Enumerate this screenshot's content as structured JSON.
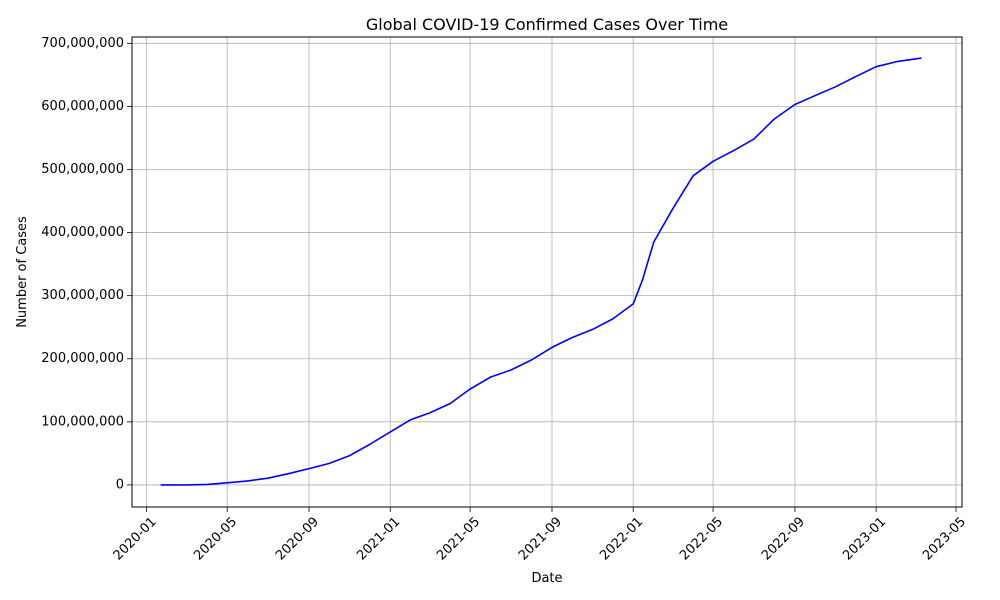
{
  "chart_data": {
    "type": "line",
    "title": "Global COVID-19 Confirmed Cases Over Time",
    "xlabel": "Date",
    "ylabel": "Number of Cases",
    "x_tick_labels": [
      "2020-01",
      "2020-05",
      "2020-09",
      "2021-01",
      "2021-05",
      "2021-09",
      "2022-01",
      "2022-05",
      "2022-09",
      "2023-01",
      "2023-05"
    ],
    "y_tick_labels": [
      "0",
      "100,000,000",
      "200,000,000",
      "300,000,000",
      "400,000,000",
      "500,000,000",
      "600,000,000",
      "700,000,000"
    ],
    "y_ticks": [
      0,
      100000000,
      200000000,
      300000000,
      400000000,
      500000000,
      600000000,
      700000000
    ],
    "ylim": [
      -35000000,
      710000000
    ],
    "xlim": [
      "2019-12-10",
      "2023-05-10"
    ],
    "grid": true,
    "line_color": "#0000ff",
    "series": [
      {
        "values": [
          {
            "x": "2020-01-22",
            "y": 0
          },
          {
            "x": "2020-03-01",
            "y": 90000
          },
          {
            "x": "2020-04-01",
            "y": 900000
          },
          {
            "x": "2020-05-01",
            "y": 3300000
          },
          {
            "x": "2020-06-01",
            "y": 6300000
          },
          {
            "x": "2020-07-01",
            "y": 10700000
          },
          {
            "x": "2020-08-01",
            "y": 17800000
          },
          {
            "x": "2020-09-01",
            "y": 25800000
          },
          {
            "x": "2020-10-01",
            "y": 34000000
          },
          {
            "x": "2020-11-01",
            "y": 46500000
          },
          {
            "x": "2020-12-01",
            "y": 64000000
          },
          {
            "x": "2021-01-01",
            "y": 84000000
          },
          {
            "x": "2021-02-01",
            "y": 103500000
          },
          {
            "x": "2021-03-01",
            "y": 114000000
          },
          {
            "x": "2021-04-01",
            "y": 129000000
          },
          {
            "x": "2021-05-01",
            "y": 152000000
          },
          {
            "x": "2021-06-01",
            "y": 171000000
          },
          {
            "x": "2021-07-01",
            "y": 182000000
          },
          {
            "x": "2021-08-01",
            "y": 198000000
          },
          {
            "x": "2021-09-01",
            "y": 218000000
          },
          {
            "x": "2021-10-01",
            "y": 233500000
          },
          {
            "x": "2021-11-01",
            "y": 246500000
          },
          {
            "x": "2021-12-01",
            "y": 263000000
          },
          {
            "x": "2022-01-01",
            "y": 287000000
          },
          {
            "x": "2022-01-15",
            "y": 325000000
          },
          {
            "x": "2022-02-01",
            "y": 385000000
          },
          {
            "x": "2022-03-01",
            "y": 437000000
          },
          {
            "x": "2022-04-01",
            "y": 490000000
          },
          {
            "x": "2022-05-01",
            "y": 513000000
          },
          {
            "x": "2022-06-01",
            "y": 530000000
          },
          {
            "x": "2022-07-01",
            "y": 548000000
          },
          {
            "x": "2022-08-01",
            "y": 580000000
          },
          {
            "x": "2022-09-01",
            "y": 603000000
          },
          {
            "x": "2022-10-01",
            "y": 617000000
          },
          {
            "x": "2022-11-01",
            "y": 631000000
          },
          {
            "x": "2022-12-01",
            "y": 647000000
          },
          {
            "x": "2023-01-01",
            "y": 663000000
          },
          {
            "x": "2023-02-01",
            "y": 671000000
          },
          {
            "x": "2023-03-10",
            "y": 676600000
          }
        ]
      }
    ]
  }
}
